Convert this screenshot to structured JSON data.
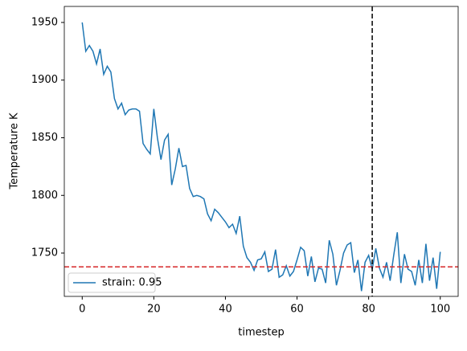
{
  "chart_data": {
    "type": "line",
    "xlabel": "timestep",
    "ylabel": "Temperature K",
    "x": [
      0,
      1,
      2,
      3,
      4,
      5,
      6,
      7,
      8,
      9,
      10,
      11,
      12,
      13,
      14,
      15,
      16,
      17,
      18,
      19,
      20,
      21,
      22,
      23,
      24,
      25,
      26,
      27,
      28,
      29,
      30,
      31,
      32,
      33,
      34,
      35,
      36,
      37,
      38,
      39,
      40,
      41,
      42,
      43,
      44,
      45,
      46,
      47,
      48,
      49,
      50,
      51,
      52,
      53,
      54,
      55,
      56,
      57,
      58,
      59,
      60,
      61,
      62,
      63,
      64,
      65,
      66,
      67,
      68,
      69,
      70,
      71,
      72,
      73,
      74,
      75,
      76,
      77,
      78,
      79,
      80,
      81,
      82,
      83,
      84,
      85,
      86,
      87,
      88,
      89,
      90,
      91,
      92,
      93,
      94,
      95,
      96,
      97,
      98,
      99,
      100
    ],
    "series": [
      {
        "name": "strain: 0.95",
        "color": "#1f77b4",
        "values": [
          1950,
          1925,
          1930,
          1925,
          1914,
          1927,
          1905,
          1912,
          1907,
          1884,
          1875,
          1880,
          1870,
          1874,
          1875,
          1875,
          1873,
          1845,
          1840,
          1836,
          1875,
          1850,
          1831,
          1848,
          1853,
          1809,
          1823,
          1841,
          1825,
          1826,
          1806,
          1799,
          1800,
          1799,
          1797,
          1784,
          1778,
          1788,
          1785,
          1781,
          1777,
          1772,
          1775,
          1767,
          1782,
          1756,
          1746,
          1742,
          1735,
          1744,
          1745,
          1751,
          1734,
          1736,
          1753,
          1729,
          1731,
          1739,
          1730,
          1734,
          1744,
          1755,
          1752,
          1730,
          1747,
          1725,
          1737,
          1736,
          1724,
          1761,
          1749,
          1722,
          1735,
          1750,
          1757,
          1759,
          1733,
          1744,
          1717,
          1742,
          1748,
          1736,
          1754,
          1737,
          1729,
          1742,
          1726,
          1748,
          1768,
          1724,
          1749,
          1736,
          1734,
          1722,
          1744,
          1724,
          1758,
          1726,
          1746,
          1719,
          1751
        ]
      }
    ],
    "hlines": [
      {
        "y": 1738,
        "color": "#d62728"
      }
    ],
    "vlines": [
      {
        "x": 81,
        "color": "#000000"
      }
    ],
    "xlim": [
      -5,
      105
    ],
    "xticks": [
      0,
      20,
      40,
      60,
      80,
      100
    ],
    "ylim": [
      1712.4,
      1963.9
    ],
    "yticks": [
      1750,
      1800,
      1850,
      1900,
      1950
    ],
    "legend": "lower left"
  }
}
